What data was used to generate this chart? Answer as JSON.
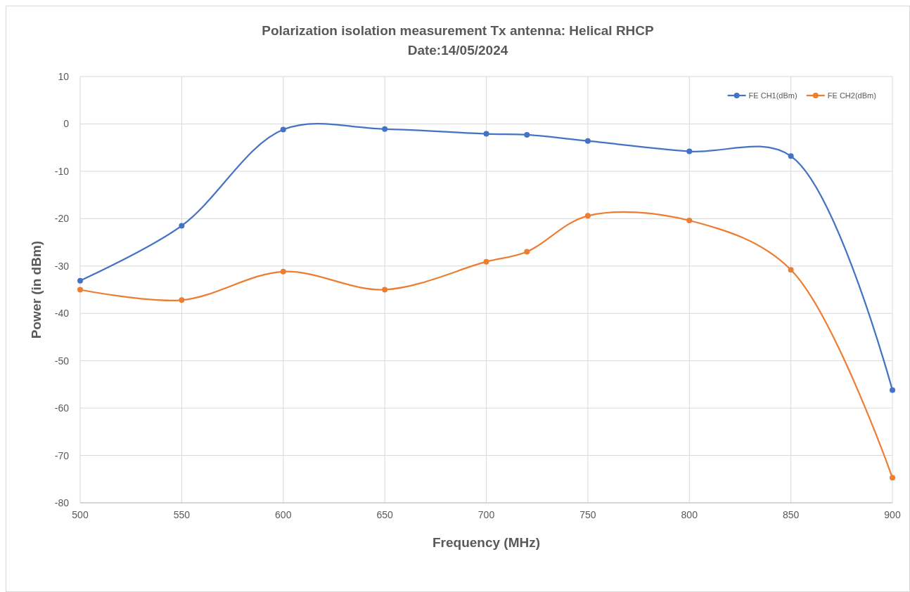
{
  "chart_data": {
    "type": "line",
    "title": "Polarization isolation measurement Tx antenna: Helical RHCP",
    "subtitle": "Date:14/05/2024",
    "xlabel": "Frequency (MHz)",
    "ylabel": "Power (in dBm)",
    "x": [
      500,
      550,
      600,
      650,
      700,
      720,
      750,
      800,
      850,
      900
    ],
    "series": [
      {
        "name": "FE CH1(dBm)",
        "color": "#4472c4",
        "values": [
          -33.1,
          -21.5,
          -1.2,
          -1.1,
          -2.1,
          -2.3,
          -3.6,
          -5.8,
          -6.8,
          -56.2
        ]
      },
      {
        "name": "FE CH2(dBm)",
        "color": "#ed7d31",
        "values": [
          -35.0,
          -37.2,
          -31.2,
          -35.0,
          -29.1,
          -27.0,
          -19.4,
          -20.4,
          -30.8,
          -74.7
        ]
      }
    ],
    "xlim": [
      500,
      900
    ],
    "xticks": [
      500,
      550,
      600,
      650,
      700,
      750,
      800,
      850,
      900
    ],
    "ylim": [
      -80,
      10
    ],
    "yticks": [
      -80,
      -70,
      -60,
      -50,
      -40,
      -30,
      -20,
      -10,
      0,
      10
    ],
    "grid": true,
    "legend": "top right",
    "marker": "circle",
    "line_style": "solid"
  }
}
